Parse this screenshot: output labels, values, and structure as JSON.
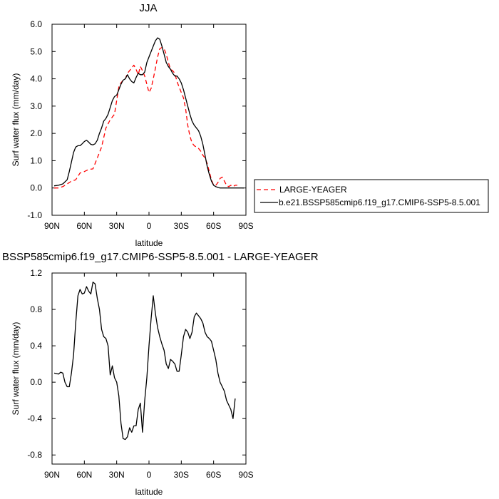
{
  "chart_data": [
    {
      "type": "line",
      "title": "JJA",
      "xlabel": "latitude",
      "ylabel": "Surf water flux (mm/day)",
      "xlim": [
        -90,
        90
      ],
      "ylim": [
        -1.0,
        6.0
      ],
      "x_tick_values": [
        -90,
        -60,
        -30,
        0,
        30,
        60,
        90
      ],
      "x_tick_labels": [
        "90N",
        "60N",
        "30N",
        "0",
        "30S",
        "60S",
        "90S"
      ],
      "y_tick_values": [
        -1.0,
        0.0,
        1.0,
        2.0,
        3.0,
        4.0,
        5.0,
        6.0
      ],
      "y_tick_labels": [
        "-1.0",
        "0.0",
        "1.0",
        "2.0",
        "3.0",
        "4.0",
        "5.0",
        "6.0"
      ],
      "legend_position": "right",
      "series": [
        {
          "name": "LARGE-YEAGER",
          "color": "#ff0000",
          "dash": "dashed",
          "x": [
            -88,
            -84,
            -80,
            -76,
            -72,
            -68,
            -64,
            -60,
            -56,
            -52,
            -48,
            -44,
            -40,
            -36,
            -32,
            -28,
            -26,
            -24,
            -22,
            -20,
            -18,
            -16,
            -14,
            -12,
            -10,
            -8,
            -6,
            -4,
            -2,
            0,
            2,
            4,
            6,
            8,
            10,
            12,
            14,
            16,
            18,
            20,
            22,
            24,
            26,
            28,
            30,
            32,
            34,
            36,
            38,
            40,
            42,
            44,
            46,
            48,
            50,
            52,
            54,
            56,
            58,
            60,
            62,
            64,
            66,
            68,
            70,
            72,
            74,
            76,
            78,
            80,
            82
          ],
          "y": [
            0.0,
            0.0,
            0.05,
            0.15,
            0.25,
            0.3,
            0.55,
            0.6,
            0.68,
            0.7,
            1.1,
            1.5,
            2.2,
            2.5,
            2.7,
            3.7,
            3.85,
            3.95,
            4.0,
            4.2,
            4.3,
            4.4,
            4.5,
            4.35,
            4.15,
            4.45,
            4.3,
            4.1,
            3.8,
            3.5,
            3.65,
            4.0,
            4.4,
            4.8,
            5.1,
            5.15,
            5.1,
            4.9,
            4.6,
            4.35,
            4.3,
            4.2,
            3.9,
            3.7,
            3.5,
            3.3,
            2.9,
            2.3,
            1.9,
            1.65,
            1.55,
            1.5,
            1.45,
            1.35,
            1.2,
            1.1,
            0.9,
            0.6,
            0.3,
            0.1,
            0.1,
            0.2,
            0.35,
            0.4,
            0.25,
            0.1,
            0.05,
            0.1,
            0.05,
            0.1,
            0.1
          ]
        },
        {
          "name": "b.e21.BSSP585cmip6.f19_g17.CMIP6-SSP5-8.5.001",
          "color": "#000000",
          "dash": "solid",
          "x": [
            -88,
            -84,
            -80,
            -76,
            -74,
            -72,
            -70,
            -68,
            -66,
            -64,
            -62,
            -60,
            -58,
            -56,
            -54,
            -52,
            -50,
            -48,
            -46,
            -44,
            -42,
            -40,
            -38,
            -36,
            -34,
            -32,
            -30,
            -28,
            -26,
            -24,
            -22,
            -20,
            -18,
            -16,
            -14,
            -12,
            -10,
            -8,
            -6,
            -4,
            -2,
            0,
            2,
            4,
            6,
            8,
            10,
            12,
            14,
            16,
            18,
            20,
            22,
            24,
            26,
            28,
            30,
            32,
            34,
            36,
            38,
            40,
            42,
            44,
            46,
            48,
            50,
            52,
            54,
            56,
            58,
            60,
            62,
            64,
            66,
            68,
            70,
            72,
            74,
            76,
            78,
            80,
            84,
            88
          ],
          "y": [
            0.08,
            0.1,
            0.15,
            0.3,
            0.6,
            0.95,
            1.3,
            1.5,
            1.55,
            1.55,
            1.62,
            1.7,
            1.75,
            1.68,
            1.6,
            1.58,
            1.62,
            1.75,
            2.0,
            2.2,
            2.45,
            2.55,
            2.7,
            2.95,
            3.2,
            3.35,
            3.4,
            3.6,
            3.8,
            3.95,
            4.0,
            4.15,
            4.0,
            3.9,
            3.85,
            4.05,
            4.2,
            4.15,
            4.15,
            4.25,
            4.6,
            4.8,
            5.0,
            5.2,
            5.4,
            5.5,
            5.45,
            5.2,
            4.9,
            4.6,
            4.45,
            4.35,
            4.2,
            4.1,
            4.1,
            4.0,
            3.85,
            3.6,
            3.3,
            3.0,
            2.7,
            2.45,
            2.3,
            2.2,
            2.1,
            1.9,
            1.6,
            1.2,
            0.8,
            0.5,
            0.25,
            0.1,
            0.05,
            0.02,
            0.0,
            0.0,
            0.0,
            0.0,
            0.0,
            0.0,
            0.0,
            0.0,
            0.0,
            0.0
          ]
        }
      ]
    },
    {
      "type": "line",
      "title": "BSSP585cmip6.f19_g17.CMIP6-SSP5-8.5.001 - LARGE-YEAGER",
      "xlabel": "latitude",
      "ylabel": "Surf water flux (mm/day)",
      "xlim": [
        -90,
        90
      ],
      "ylim": [
        -0.9,
        1.2
      ],
      "x_tick_values": [
        -90,
        -60,
        -30,
        0,
        30,
        60,
        90
      ],
      "x_tick_labels": [
        "90N",
        "60N",
        "30N",
        "0",
        "30S",
        "60S",
        "90S"
      ],
      "y_tick_values": [
        -0.8,
        -0.4,
        0.0,
        0.4,
        0.8,
        1.2
      ],
      "y_tick_labels": [
        "-0.8",
        "-0.4",
        "0.0",
        "0.4",
        "0.8",
        "1.2"
      ],
      "series": [
        {
          "color": "#000000",
          "dash": "solid",
          "x": [
            -88,
            -84,
            -82,
            -80,
            -78,
            -76,
            -74,
            -72,
            -70,
            -68,
            -66,
            -64,
            -62,
            -60,
            -58,
            -56,
            -54,
            -52,
            -50,
            -48,
            -46,
            -44,
            -42,
            -40,
            -38,
            -36,
            -34,
            -32,
            -30,
            -28,
            -26,
            -24,
            -22,
            -20,
            -18,
            -16,
            -14,
            -12,
            -10,
            -8,
            -6,
            -4,
            -2,
            0,
            2,
            4,
            6,
            8,
            10,
            12,
            14,
            16,
            18,
            20,
            22,
            24,
            26,
            28,
            30,
            32,
            34,
            36,
            38,
            40,
            42,
            44,
            46,
            48,
            50,
            52,
            54,
            56,
            58,
            60,
            62,
            64,
            66,
            68,
            70,
            72,
            74,
            76,
            78,
            80
          ],
          "y": [
            0.1,
            0.09,
            0.11,
            0.1,
            0.0,
            -0.05,
            -0.05,
            0.1,
            0.3,
            0.65,
            0.95,
            1.02,
            0.97,
            0.98,
            1.05,
            1.0,
            0.97,
            1.1,
            1.08,
            0.92,
            0.8,
            0.58,
            0.5,
            0.48,
            0.4,
            0.08,
            0.18,
            0.05,
            0.0,
            -0.15,
            -0.45,
            -0.62,
            -0.63,
            -0.6,
            -0.5,
            -0.55,
            -0.48,
            -0.48,
            -0.3,
            -0.23,
            -0.55,
            -0.2,
            0.05,
            0.4,
            0.7,
            0.95,
            0.75,
            0.6,
            0.5,
            0.42,
            0.35,
            0.2,
            0.15,
            0.25,
            0.23,
            0.2,
            0.12,
            0.12,
            0.3,
            0.5,
            0.58,
            0.55,
            0.48,
            0.55,
            0.72,
            0.76,
            0.73,
            0.7,
            0.65,
            0.55,
            0.5,
            0.48,
            0.45,
            0.35,
            0.25,
            0.1,
            0.0,
            -0.05,
            -0.1,
            -0.2,
            -0.25,
            -0.3,
            -0.4,
            -0.18
          ]
        }
      ]
    }
  ]
}
